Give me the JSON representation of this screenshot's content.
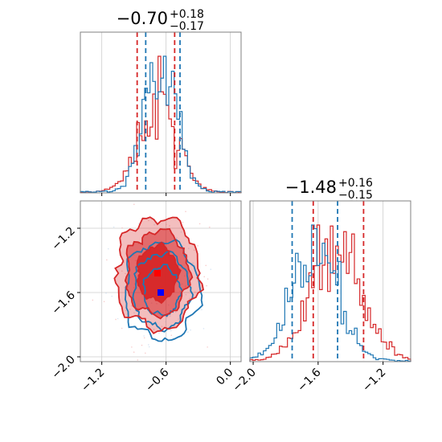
{
  "chart_data": {
    "type": "corner",
    "grid": true,
    "colors": {
      "red": "#d62728",
      "blue": "#1f77b4"
    },
    "panels": [
      {
        "id": "hist-x",
        "type": "histogram",
        "title_value": "−0.70",
        "title_plus": "+0.18",
        "title_minus": "−0.17",
        "xlim": [
          -1.4,
          0.1
        ],
        "grid_x": [
          -1.2,
          -0.6,
          0.0
        ],
        "series": [
          {
            "name": "",
            "color": "red",
            "mean": -0.68,
            "sd": 0.175,
            "quantiles": [
              -0.87,
              -0.52
            ]
          },
          {
            "name": "",
            "color": "blue",
            "mean": -0.65,
            "sd": 0.145,
            "quantiles": [
              -0.79,
              -0.47
            ]
          }
        ]
      },
      {
        "id": "hist-y",
        "type": "histogram",
        "title_value": "−1.48",
        "title_plus": "+0.16",
        "title_minus": "−0.15",
        "xlim": [
          -2.02,
          -1.03
        ],
        "grid_x": [
          -2.0,
          -1.6,
          -1.2
        ],
        "ticks": [
          {
            "value": -2.0,
            "label": "−2.0"
          },
          {
            "value": -1.6,
            "label": "−1.6"
          },
          {
            "value": -1.2,
            "label": "−1.2"
          }
        ],
        "series": [
          {
            "name": "",
            "color": "red",
            "mean": -1.48,
            "sd": 0.16,
            "quantiles": [
              -1.63,
              -1.32
            ]
          },
          {
            "name": "",
            "color": "blue",
            "mean": -1.62,
            "sd": 0.14,
            "quantiles": [
              -1.76,
              -1.48
            ]
          }
        ]
      },
      {
        "id": "scatter-xy",
        "type": "contour",
        "xlim": [
          -1.4,
          0.1
        ],
        "ylim": [
          -2.03,
          -1.03
        ],
        "x_ticks": [
          {
            "value": -1.2,
            "label": "−1.2"
          },
          {
            "value": -0.6,
            "label": "−0.6"
          },
          {
            "value": 0.0,
            "label": "0.0"
          }
        ],
        "y_ticks": [
          {
            "value": -1.2,
            "label": "−1.2"
          },
          {
            "value": -1.6,
            "label": "−1.6"
          },
          {
            "value": -2.0,
            "label": "−2.0"
          }
        ],
        "grid_x": [
          -1.2,
          -0.6,
          0.0
        ],
        "grid_y": [
          -1.2,
          -1.6,
          -2.0
        ],
        "series": [
          {
            "name": "",
            "color": "red",
            "center": [
              -0.68,
              -1.48
            ],
            "spread": [
              0.19,
              0.17
            ],
            "levels": [
              1.0,
              1.55,
              2.05
            ],
            "fill_opacity": [
              0.95,
              0.55,
              0.3
            ],
            "best_fit": [
              -0.68,
              -1.48
            ]
          },
          {
            "name": "",
            "color": "blue",
            "center": [
              -0.64,
              -1.59
            ],
            "spread": [
              0.17,
              0.15
            ],
            "levels": [
              1.0,
              1.55,
              2.05
            ],
            "best_fit": [
              -0.65,
              -1.6
            ]
          }
        ]
      }
    ]
  }
}
